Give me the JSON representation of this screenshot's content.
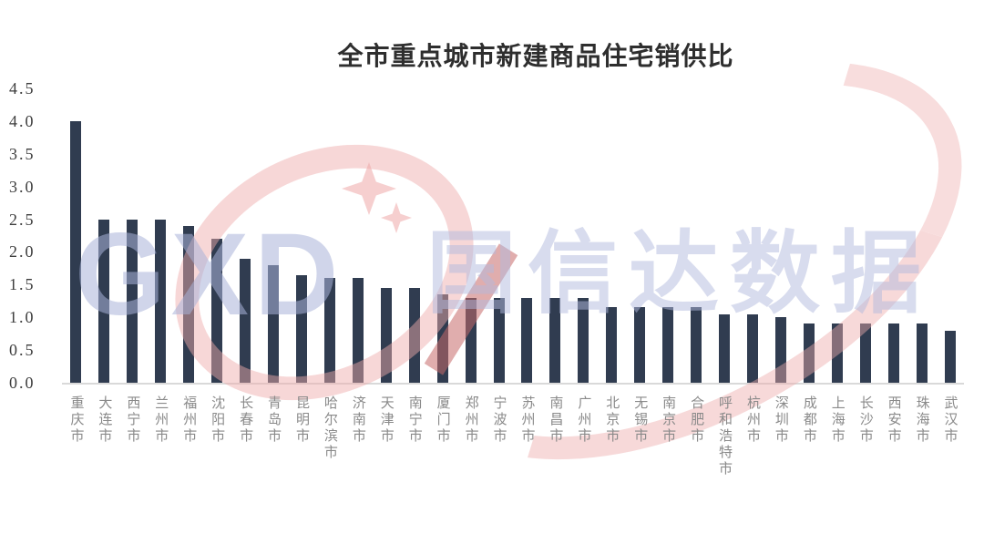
{
  "watermark": {
    "logo_acronym": "GXD",
    "brand": "国信达数据",
    "pink_color": "#f2c6c6",
    "lavender_color": "#d5d9ed"
  },
  "chart_data": {
    "type": "bar",
    "title": "全市重点城市新建商品住宅销供比",
    "categories": [
      "重庆市",
      "大连市",
      "西宁市",
      "兰州市",
      "福州市",
      "沈阳市",
      "长春市",
      "青岛市",
      "昆明市",
      "哈尔滨市",
      "济南市",
      "天津市",
      "南宁市",
      "厦门市",
      "郑州市",
      "宁波市",
      "苏州市",
      "南昌市",
      "广州市",
      "北京市",
      "无锡市",
      "南京市",
      "合肥市",
      "呼和浩特市",
      "杭州市",
      "深圳市",
      "成都市",
      "上海市",
      "长沙市",
      "西安市",
      "珠海市",
      "武汉市"
    ],
    "values": [
      4.0,
      2.5,
      2.5,
      2.5,
      2.4,
      2.2,
      1.9,
      1.8,
      1.65,
      1.6,
      1.6,
      1.45,
      1.45,
      1.35,
      1.3,
      1.3,
      1.3,
      1.3,
      1.3,
      1.15,
      1.15,
      1.15,
      1.15,
      1.05,
      1.05,
      1.0,
      0.9,
      0.9,
      0.9,
      0.9,
      0.9,
      0.8
    ],
    "xlabel": "",
    "ylabel": "",
    "ylim": [
      0,
      4.5
    ],
    "ytick_interval": 0.5,
    "ytick_labels": [
      "4.5",
      "4.0",
      "3.5",
      "3.0",
      "2.5",
      "2.0",
      "1.5",
      "1.0",
      "0.5",
      "0.0"
    ],
    "bar_color": "#303c50",
    "axis_line_color": "#d9d9d9",
    "grid": false,
    "legend_position": "none"
  }
}
